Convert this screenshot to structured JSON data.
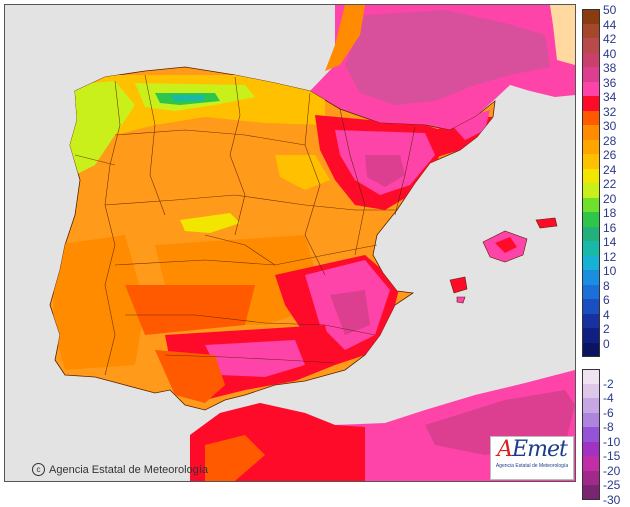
{
  "map": {
    "region": "Península Ibérica y Baleares",
    "copyright": "Agencia Estatal de Meteorología",
    "logo_text": "AEmet",
    "logo_subtitle": "Agencia Estatal de Meteorología"
  },
  "legend": {
    "upper_scale": [
      {
        "value": "50",
        "color": "#8a3b10"
      },
      {
        "value": "44",
        "color": "#a4472a"
      },
      {
        "value": "42",
        "color": "#b94a4a"
      },
      {
        "value": "40",
        "color": "#c9406a"
      },
      {
        "value": "38",
        "color": "#dc3f8f"
      },
      {
        "value": "36",
        "color": "#ff44a9"
      },
      {
        "value": "34",
        "color": "#ff0b2a"
      },
      {
        "value": "32",
        "color": "#ff5a00"
      },
      {
        "value": "30",
        "color": "#ff8c00"
      },
      {
        "value": "28",
        "color": "#ffa500"
      },
      {
        "value": "26",
        "color": "#ffc000"
      },
      {
        "value": "24",
        "color": "#f2e600"
      },
      {
        "value": "22",
        "color": "#c9f01a"
      },
      {
        "value": "20",
        "color": "#6fe02c"
      },
      {
        "value": "18",
        "color": "#2fc54a"
      },
      {
        "value": "16",
        "color": "#22b07c"
      },
      {
        "value": "14",
        "color": "#18b9a8"
      },
      {
        "value": "12",
        "color": "#16b2d6"
      },
      {
        "value": "10",
        "color": "#1a8fe0"
      },
      {
        "value": "8",
        "color": "#1b6fd8"
      },
      {
        "value": "6",
        "color": "#1a4fc0"
      },
      {
        "value": "4",
        "color": "#1532a0"
      },
      {
        "value": "2",
        "color": "#111f80"
      },
      {
        "value": "0",
        "color": "#0a1460"
      }
    ],
    "lower_scale": [
      {
        "value": "-2",
        "color": "#efe3f2"
      },
      {
        "value": "-4",
        "color": "#ddc8ea"
      },
      {
        "value": "-6",
        "color": "#c7a6e4"
      },
      {
        "value": "-8",
        "color": "#ad85de"
      },
      {
        "value": "-10",
        "color": "#9454d8"
      },
      {
        "value": "-15",
        "color": "#a232c2"
      },
      {
        "value": "-20",
        "color": "#c12ea8"
      },
      {
        "value": "-25",
        "color": "#a02a8a"
      },
      {
        "value": "-30",
        "color": "#7a2472"
      }
    ]
  },
  "colors": {
    "sea": "#e3e3e3",
    "land_base": "#ff9a1a",
    "hot_pink": "#ff44a9",
    "red": "#ff0b2a",
    "border": "#5a1f00"
  }
}
